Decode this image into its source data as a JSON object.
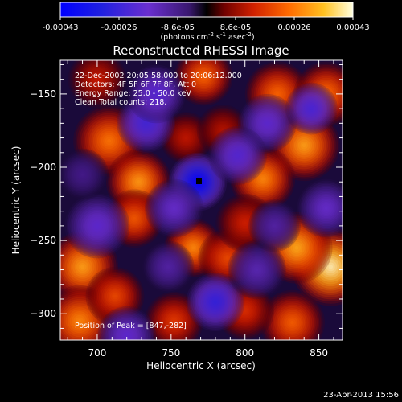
{
  "title": "Reconstructed RHESSI Image",
  "colorbar": {
    "ticks": [
      "-0.00043",
      "-0.00026",
      "-8.6e-05",
      "8.6e-05",
      "0.00026",
      "0.00043"
    ],
    "unit_prefix": "(photons cm",
    "unit_sup1": "-2",
    "unit_mid": " s",
    "unit_sup2": "-1",
    "unit_mid2": " asec",
    "unit_sup3": "-2",
    "unit_suffix": ")"
  },
  "info": {
    "line1": "22-Dec-2002 20:05:58.000 to 20:06:12.000",
    "line2": "Detectors: 4F 5F 6F 7F 8F, Att 0",
    "line3": "Energy Range: 25.0 - 50.0 keV",
    "line4": "Clean     Total counts: 218."
  },
  "peak_label": "Position of Peak = [847,-282]",
  "timestamp": "23-Apr-2013 15:56",
  "chart_data": {
    "type": "heatmap",
    "title": "Reconstructed RHESSI Image",
    "xlabel": "Heliocentric X (arcsec)",
    "ylabel": "Heliocentric Y (arcsec)",
    "xlim": [
      675,
      866
    ],
    "ylim": [
      -318,
      -127
    ],
    "x_ticks": [
      700,
      750,
      800,
      850
    ],
    "y_ticks": [
      -150,
      -200,
      -250,
      -300
    ],
    "colorbar_range": [
      -0.00043,
      0.00043
    ],
    "peak_position": [
      847,
      -282
    ],
    "blobs": [
      {
        "x": 858,
        "y": -268,
        "v": 0.00043,
        "s": 12
      },
      {
        "x": 835,
        "y": -255,
        "v": 0.00034,
        "s": 11
      },
      {
        "x": 840,
        "y": -185,
        "v": 0.00033,
        "s": 11
      },
      {
        "x": 812,
        "y": -208,
        "v": 0.0003,
        "s": 10
      },
      {
        "x": 822,
        "y": -150,
        "v": 0.00026,
        "s": 10
      },
      {
        "x": 855,
        "y": -150,
        "v": 0.00027,
        "s": 10
      },
      {
        "x": 772,
        "y": -138,
        "v": 0.00026,
        "s": 9
      },
      {
        "x": 708,
        "y": -182,
        "v": 0.00028,
        "s": 11
      },
      {
        "x": 728,
        "y": -210,
        "v": 0.00032,
        "s": 10
      },
      {
        "x": 725,
        "y": -235,
        "v": 0.00024,
        "s": 9
      },
      {
        "x": 690,
        "y": -268,
        "v": 0.00033,
        "s": 11
      },
      {
        "x": 688,
        "y": -305,
        "v": 0.0003,
        "s": 11
      },
      {
        "x": 712,
        "y": -288,
        "v": 0.00022,
        "s": 9
      },
      {
        "x": 765,
        "y": -255,
        "v": 0.0003,
        "s": 9
      },
      {
        "x": 788,
        "y": -262,
        "v": 0.00022,
        "s": 9
      },
      {
        "x": 832,
        "y": -306,
        "v": 0.00025,
        "s": 10
      },
      {
        "x": 800,
        "y": -298,
        "v": 0.00018,
        "s": 9
      },
      {
        "x": 752,
        "y": -305,
        "v": 0.0002,
        "s": 9
      },
      {
        "x": 760,
        "y": -180,
        "v": 0.00014,
        "s": 8
      },
      {
        "x": 785,
        "y": -175,
        "v": 0.00013,
        "s": 8
      },
      {
        "x": 700,
        "y": -140,
        "v": 0.00015,
        "s": 9
      },
      {
        "x": 800,
        "y": -238,
        "v": 0.00016,
        "s": 9
      },
      {
        "x": 768,
        "y": -210,
        "v": -0.00043,
        "s": 9
      },
      {
        "x": 780,
        "y": -292,
        "v": -0.0003,
        "s": 9
      },
      {
        "x": 733,
        "y": -170,
        "v": -0.00026,
        "s": 9
      },
      {
        "x": 740,
        "y": -150,
        "v": -0.00022,
        "s": 9
      },
      {
        "x": 815,
        "y": -170,
        "v": -0.0002,
        "s": 9
      },
      {
        "x": 845,
        "y": -160,
        "v": -0.00025,
        "s": 8
      },
      {
        "x": 855,
        "y": -228,
        "v": -0.00018,
        "s": 9
      },
      {
        "x": 700,
        "y": -240,
        "v": -0.0002,
        "s": 10
      },
      {
        "x": 795,
        "y": -192,
        "v": -0.00022,
        "s": 9
      },
      {
        "x": 748,
        "y": -268,
        "v": -0.00012,
        "s": 8
      },
      {
        "x": 808,
        "y": -270,
        "v": -0.00014,
        "s": 9
      },
      {
        "x": 720,
        "y": -315,
        "v": -0.0002,
        "s": 9
      },
      {
        "x": 820,
        "y": -240,
        "v": -0.00012,
        "s": 8
      },
      {
        "x": 752,
        "y": -228,
        "v": -0.00018,
        "s": 9
      },
      {
        "x": 690,
        "y": -205,
        "v": -8e-05,
        "s": 8
      }
    ]
  }
}
